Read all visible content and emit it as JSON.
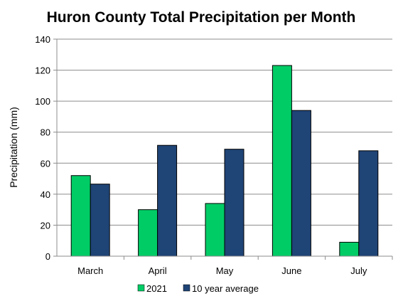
{
  "chart_data": {
    "type": "bar",
    "title": "Huron County Total Precipitation per Month",
    "xlabel": "",
    "ylabel": "Precipitation (mm)",
    "categories": [
      "March",
      "April",
      "May",
      "June",
      "July"
    ],
    "series": [
      {
        "name": "2021",
        "values": [
          52,
          30,
          34,
          123,
          9
        ],
        "color": "#00cc66"
      },
      {
        "name": "10 year average",
        "values": [
          46.5,
          71.5,
          69,
          94,
          68
        ],
        "color": "#1f4476"
      }
    ],
    "ylim": [
      0,
      140
    ],
    "yticks": [
      0,
      20,
      40,
      60,
      80,
      100,
      120,
      140
    ],
    "grid": true,
    "legend_position": "bottom"
  }
}
